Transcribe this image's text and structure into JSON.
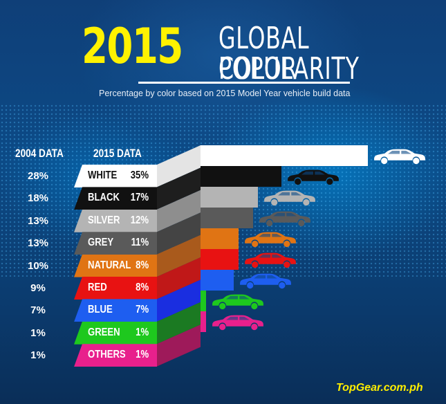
{
  "header": {
    "year": "2015",
    "title_line1": "GLOBAL COLOR",
    "title_line2": "POPULARITY",
    "subtitle": "Percentage by color based on 2015 Model Year vehicle build data"
  },
  "columns": {
    "data_2004": "2004 DATA",
    "data_2015": "2015 DATA"
  },
  "rows": [
    {
      "color": "WHITE",
      "pct_2015": "35%",
      "pct_2004": "28%",
      "hex": "#ffffff",
      "side": "#e4e4e4",
      "text": "#111111"
    },
    {
      "color": "BLACK",
      "pct_2015": "17%",
      "pct_2004": "18%",
      "hex": "#111111",
      "side": "#1e1e1e",
      "text": "#ffffff"
    },
    {
      "color": "SILVER",
      "pct_2015": "12%",
      "pct_2004": "13%",
      "hex": "#b4b4b4",
      "side": "#8e8e8e",
      "text": "#ffffff"
    },
    {
      "color": "GREY",
      "pct_2015": "11%",
      "pct_2004": "13%",
      "hex": "#5a5a5a",
      "side": "#444444",
      "text": "#ffffff"
    },
    {
      "color": "NATURAL",
      "pct_2015": "8%",
      "pct_2004": "10%",
      "hex": "#e07414",
      "side": "#a95a1c",
      "text": "#ffffff"
    },
    {
      "color": "RED",
      "pct_2015": "8%",
      "pct_2004": "9%",
      "hex": "#e81212",
      "side": "#c01818",
      "text": "#ffffff"
    },
    {
      "color": "BLUE",
      "pct_2015": "7%",
      "pct_2004": "7%",
      "hex": "#1e5ef0",
      "side": "#1a2ee0",
      "text": "#ffffff"
    },
    {
      "color": "GREEN",
      "pct_2015": "1%",
      "pct_2004": "1%",
      "hex": "#1ec81e",
      "side": "#1b7a22",
      "text": "#ffffff"
    },
    {
      "color": "OTHERS",
      "pct_2015": "1%",
      "pct_2004": "1%",
      "hex": "#e8208c",
      "side": "#9e1a5a",
      "text": "#ffffff"
    }
  ],
  "footer": {
    "brand": "TopGear.com.ph"
  },
  "chart_data": {
    "type": "bar",
    "title": "2015 Global Color Popularity",
    "subtitle": "Percentage by color based on 2015 Model Year vehicle build data",
    "categories": [
      "White",
      "Black",
      "Silver",
      "Grey",
      "Natural",
      "Red",
      "Blue",
      "Green",
      "Others"
    ],
    "series": [
      {
        "name": "2015 Data",
        "values": [
          35,
          17,
          12,
          11,
          8,
          8,
          7,
          1,
          1
        ]
      },
      {
        "name": "2004 Data",
        "values": [
          28,
          18,
          13,
          13,
          10,
          9,
          7,
          1,
          1
        ]
      }
    ],
    "units": "%",
    "orientation": "horizontal",
    "xlabel": "",
    "ylabel": "",
    "legend": [
      "2004 DATA",
      "2015 DATA"
    ],
    "grid": false,
    "source": "TopGear.com.ph"
  }
}
